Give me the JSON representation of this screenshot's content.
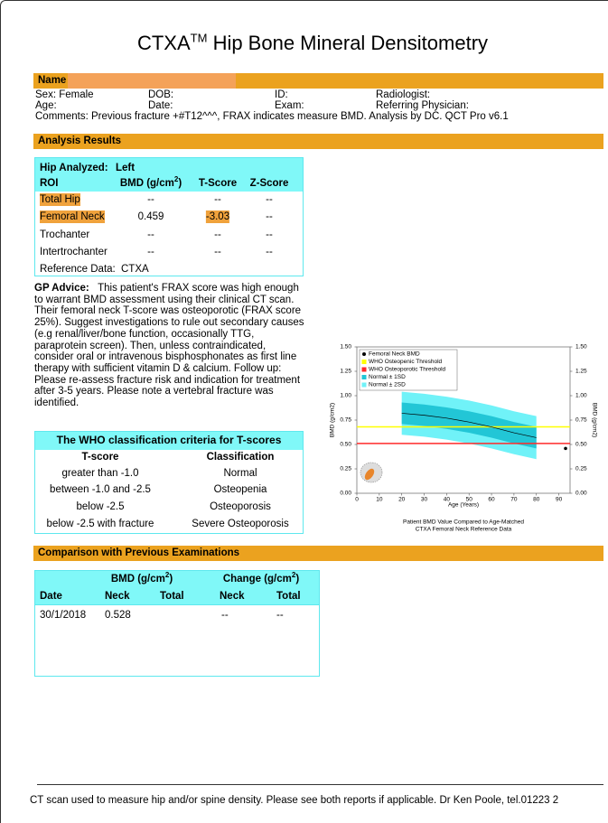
{
  "header": {
    "title": "CTXA",
    "title_sup": "TM",
    "title_rest": "Hip Bone Mineral Densitometry"
  },
  "name_label": "Name",
  "patient": {
    "sex": "Sex: Female",
    "dob": "DOB:",
    "id": "ID:",
    "radiologist": "Radiologist:",
    "age": "Age:",
    "date": "Date:",
    "exam": "Exam:",
    "referring": "Referring Physician:",
    "comments": "Comments: Previous fracture +#T12^^^, FRAX indicates measure BMD. Analysis by DC. QCT Pro v6.1"
  },
  "analysis": {
    "section": "Analysis Results",
    "hip_label": "Hip Analyzed:",
    "hip_value": "Left",
    "columns": {
      "roi": "ROI",
      "bmd": "BMD (g/cm",
      "bmd_sup": "2",
      "bmd_end": ")",
      "t": "T-Score",
      "z": "Z-Score"
    },
    "rows": [
      [
        "Total Hip",
        "--",
        "--",
        "--"
      ],
      [
        "Femoral Neck",
        "0.459",
        "-3.03",
        "--"
      ],
      [
        "Trochanter",
        "--",
        "--",
        "--"
      ],
      [
        "Intertrochanter",
        "--",
        "--",
        "--"
      ]
    ],
    "reference_label": "Reference Data:",
    "reference_value": "CTXA"
  },
  "gp": {
    "label": "GP Advice:",
    "text": "This patient's FRAX score was high enough to warrant BMD assessment using their clinical CT scan. Their femoral neck T-score was osteoporotic (FRAX score 25%). Suggest investigations to rule out secondary causes (e.g renal/liver/bone function, occasionally TTG, paraprotein screen). Then, unless contraindicated, consider oral or intravenous bisphosphonates as first line therapy with sufficient vitamin D & calcium. Follow up: Please re-assess fracture risk and indication for treatment after 3-5 years. Please note a vertebral fracture was identified."
  },
  "who": {
    "title": "The WHO classification criteria for T-scores",
    "headers": [
      "T-score",
      "Classification"
    ],
    "rows": [
      [
        "greater than -1.0",
        "Normal"
      ],
      [
        "between -1.0 and -2.5",
        "Osteopenia"
      ],
      [
        "below -2.5",
        "Osteoporosis"
      ],
      [
        "below -2.5 with fracture",
        "Severe Osteoporosis"
      ]
    ]
  },
  "chart_data": {
    "type": "line",
    "xlabel": "Age (Years)",
    "ylabel": "BMD (g/cm2)",
    "y2label": "BMD (g/cm2)",
    "caption": [
      "Patient BMD Value Compared to Age-Matched",
      "CTXA Femoral Neck Reference Data"
    ],
    "xlim": [
      0,
      95
    ],
    "xticks": [
      0,
      10,
      20,
      30,
      40,
      50,
      60,
      70,
      80,
      90
    ],
    "ylim": [
      0,
      1.5
    ],
    "yticks": [
      {
        "value": 0,
        "label": "0.00"
      },
      0.25,
      {
        "value": 0.5,
        "label": "0.50"
      },
      0.75,
      {
        "value": 1,
        "label": "1.00"
      },
      1.25,
      {
        "value": 1.5,
        "label": "1.50"
      }
    ],
    "y2lim": [
      0,
      1.5
    ],
    "y2ticks": [
      {
        "value": 0,
        "label": "0.00"
      },
      0.25,
      {
        "value": 0.5,
        "label": "0.50"
      },
      0.75,
      {
        "value": 1,
        "label": "1.00"
      },
      1.25,
      {
        "value": 1.5,
        "label": "1.50"
      }
    ],
    "x": [
      20,
      30,
      40,
      50,
      60,
      70,
      80
    ],
    "mean": {
      "color": "#000000",
      "values": [
        0.82,
        0.8,
        0.77,
        0.73,
        0.68,
        0.62,
        0.57
      ]
    },
    "patient": {
      "name": "Femoral Neck BMD",
      "color": "#000000",
      "x": [
        93
      ],
      "values": [
        0.459
      ]
    },
    "thresholds": [
      {
        "name": "WHO Osteopenic Threshold",
        "color": "#ffff00",
        "value": 0.68
      },
      {
        "name": "WHO Osteoporotic Threshold",
        "color": "#ff2a2a",
        "value": 0.51
      }
    ],
    "bands": [
      {
        "name": "Normal ± 1SD",
        "color": "#22c6d6",
        "upper": [
          0.93,
          0.91,
          0.88,
          0.84,
          0.79,
          0.73,
          0.68
        ],
        "lower": [
          0.71,
          0.69,
          0.66,
          0.62,
          0.57,
          0.51,
          0.46
        ]
      },
      {
        "name": "Normal ± 2SD",
        "color": "#70f2f8",
        "upper": [
          1.04,
          1.02,
          0.99,
          0.95,
          0.9,
          0.84,
          0.79
        ],
        "lower": [
          0.6,
          0.58,
          0.55,
          0.51,
          0.46,
          0.4,
          0.35
        ]
      }
    ]
  },
  "comparison": {
    "section": "Comparison with Previous Examinations",
    "group_bmd": {
      "text": "BMD (g/cm",
      "sup": "2",
      "end": ")"
    },
    "group_change": {
      "text": "Change (g/cm",
      "sup": "2",
      "end": ")"
    },
    "headers": [
      "Date",
      "Neck",
      "Total",
      "Neck",
      "Total"
    ],
    "rows": [
      {
        "date": "30/1/2018",
        "neck": "0.528",
        "change_neck": "--",
        "change_total": "--"
      }
    ]
  },
  "footer": "CT scan used to measure hip and/or spine density. Please see both reports if applicable. Dr Ken Poole, tel.01223 2"
}
